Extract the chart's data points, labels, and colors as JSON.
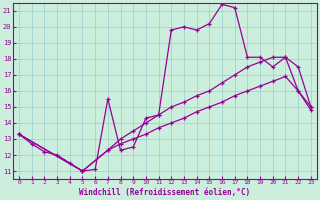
{
  "xlabel": "Windchill (Refroidissement éolien,°C)",
  "bg_color": "#cceedd",
  "line_color": "#990099",
  "grid_color": "#99cccc",
  "xlim": [
    -0.5,
    23.5
  ],
  "ylim": [
    10.5,
    21.5
  ],
  "yticks": [
    11,
    12,
    13,
    14,
    15,
    16,
    17,
    18,
    19,
    20,
    21
  ],
  "xticks": [
    0,
    1,
    2,
    3,
    4,
    5,
    6,
    7,
    8,
    9,
    10,
    11,
    12,
    13,
    14,
    15,
    16,
    17,
    18,
    19,
    20,
    21,
    22,
    23
  ],
  "line1_x": [
    0,
    1,
    2,
    3,
    4,
    5,
    6,
    7,
    8,
    9,
    10,
    11,
    12,
    13,
    14,
    15,
    16,
    17,
    18,
    19,
    20,
    21,
    22,
    23
  ],
  "line1_y": [
    13.3,
    12.7,
    12.2,
    12.0,
    11.5,
    11.0,
    11.1,
    15.5,
    12.3,
    12.5,
    14.3,
    14.5,
    19.8,
    20.0,
    19.8,
    20.2,
    21.4,
    21.2,
    18.1,
    18.1,
    17.5,
    18.1,
    16.0,
    14.8
  ],
  "line2_x": [
    0,
    5,
    7,
    8,
    9,
    10,
    11,
    12,
    13,
    14,
    15,
    16,
    17,
    18,
    19,
    20,
    21,
    22,
    23
  ],
  "line2_y": [
    13.3,
    11.0,
    12.3,
    13.0,
    13.5,
    14.0,
    14.5,
    15.0,
    15.3,
    15.7,
    16.0,
    16.5,
    17.0,
    17.5,
    17.8,
    18.1,
    18.1,
    17.5,
    15.0
  ],
  "line3_x": [
    0,
    5,
    7,
    8,
    9,
    10,
    11,
    12,
    13,
    14,
    15,
    16,
    17,
    18,
    19,
    20,
    21,
    22,
    23
  ],
  "line3_y": [
    13.3,
    11.0,
    12.3,
    12.7,
    13.0,
    13.3,
    13.7,
    14.0,
    14.3,
    14.7,
    15.0,
    15.3,
    15.7,
    16.0,
    16.3,
    16.6,
    16.9,
    16.0,
    15.0
  ]
}
